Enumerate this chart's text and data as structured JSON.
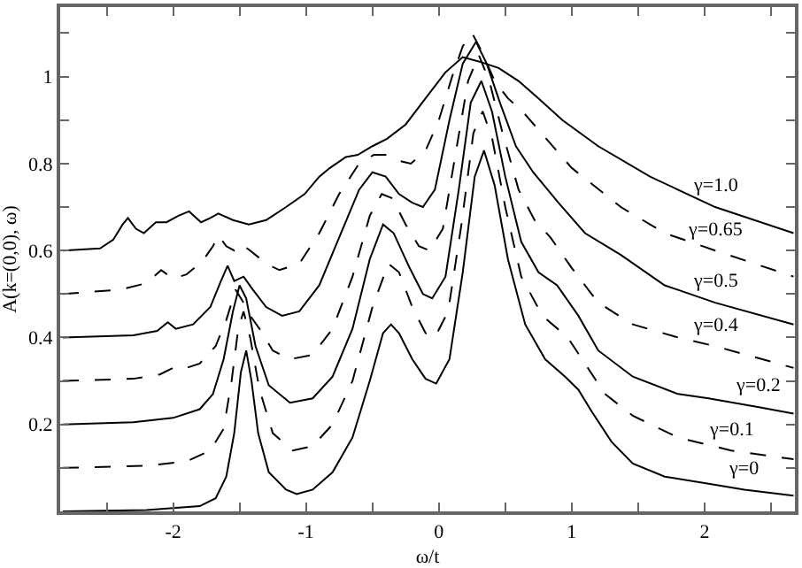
{
  "chart_data": {
    "type": "line",
    "xlabel": "ω/t",
    "ylabel": "A(k=(0,0), ω)",
    "xlim": [
      -2.85,
      2.68
    ],
    "xticks": [
      {
        "value": -2.5,
        "label": null
      },
      -2,
      {
        "value": -1.5,
        "label": null
      },
      -1,
      {
        "value": -0.5,
        "label": null
      },
      0,
      {
        "value": 0.5,
        "label": null
      },
      1,
      {
        "value": 1.5,
        "label": null
      },
      2,
      {
        "value": 2.5,
        "label": null
      }
    ],
    "ylim": [
      0,
      1.16
    ],
    "yticks": [
      {
        "value": 0.1,
        "label": null
      },
      0.2,
      {
        "value": 0.3,
        "label": null
      },
      0.4,
      {
        "value": 0.5,
        "label": null
      },
      0.6,
      {
        "value": 0.7,
        "label": null
      },
      0.8,
      {
        "value": 0.9,
        "label": null
      },
      1,
      {
        "value": 1.1,
        "label": null
      }
    ],
    "grid": false,
    "marker": "none",
    "series": [
      {
        "name": "γ=0",
        "color": "#000000",
        "line_style": "solid",
        "x": [
          -2.83,
          -2.2,
          -1.8,
          -1.68,
          -1.6,
          -1.54,
          -1.49,
          -1.45,
          -1.41,
          -1.36,
          -1.28,
          -1.15,
          -1.07,
          -0.95,
          -0.8,
          -0.65,
          -0.52,
          -0.42,
          -0.36,
          -0.3,
          -0.2,
          -0.1,
          -0.02,
          0.08,
          0.18,
          0.27,
          0.34,
          0.42,
          0.52,
          0.65,
          0.8,
          0.95,
          1.05,
          1.15,
          1.3,
          1.46,
          1.7,
          2.0,
          2.3,
          2.67
        ],
        "values": [
          0,
          0.003,
          0.012,
          0.03,
          0.08,
          0.18,
          0.32,
          0.37,
          0.3,
          0.18,
          0.09,
          0.05,
          0.04,
          0.05,
          0.09,
          0.17,
          0.3,
          0.41,
          0.43,
          0.41,
          0.35,
          0.305,
          0.294,
          0.35,
          0.55,
          0.77,
          0.83,
          0.75,
          0.58,
          0.43,
          0.35,
          0.31,
          0.28,
          0.23,
          0.16,
          0.11,
          0.08,
          0.065,
          0.05,
          0.036
        ]
      },
      {
        "name": "γ=0.1",
        "color": "#000000",
        "line_style": "dashed",
        "x": [
          -2.83,
          -2.2,
          -1.9,
          -1.72,
          -1.62,
          -1.56,
          -1.51,
          -1.47,
          -1.42,
          -1.35,
          -1.25,
          -1.1,
          -0.95,
          -0.8,
          -0.65,
          -0.5,
          -0.38,
          -0.3,
          -0.2,
          -0.1,
          -0.03,
          0.07,
          0.17,
          0.26,
          0.33,
          0.4,
          0.5,
          0.62,
          0.78,
          0.97,
          1.1,
          1.25,
          1.46,
          1.8,
          2.2,
          2.67
        ],
        "values": [
          0.1,
          0.105,
          0.115,
          0.14,
          0.19,
          0.3,
          0.42,
          0.46,
          0.4,
          0.28,
          0.18,
          0.14,
          0.15,
          0.2,
          0.3,
          0.47,
          0.57,
          0.55,
          0.47,
          0.41,
          0.4,
          0.46,
          0.66,
          0.87,
          0.92,
          0.86,
          0.7,
          0.54,
          0.45,
          0.4,
          0.34,
          0.27,
          0.22,
          0.17,
          0.14,
          0.12
        ]
      },
      {
        "name": "γ=0.2",
        "color": "#000000",
        "line_style": "solid",
        "x": [
          -2.83,
          -2.3,
          -2.0,
          -1.8,
          -1.7,
          -1.62,
          -1.55,
          -1.5,
          -1.45,
          -1.38,
          -1.28,
          -1.12,
          -0.95,
          -0.8,
          -0.65,
          -0.52,
          -0.42,
          -0.34,
          -0.22,
          -0.12,
          -0.05,
          0.05,
          0.15,
          0.24,
          0.32,
          0.4,
          0.5,
          0.62,
          0.75,
          0.89,
          1.05,
          1.2,
          1.46,
          1.8,
          2.03,
          2.4,
          2.67
        ],
        "values": [
          0.2,
          0.205,
          0.215,
          0.235,
          0.27,
          0.35,
          0.46,
          0.52,
          0.49,
          0.38,
          0.29,
          0.25,
          0.26,
          0.31,
          0.42,
          0.58,
          0.66,
          0.64,
          0.56,
          0.5,
          0.49,
          0.54,
          0.74,
          0.94,
          0.99,
          0.92,
          0.77,
          0.62,
          0.55,
          0.52,
          0.45,
          0.37,
          0.31,
          0.27,
          0.26,
          0.24,
          0.225
        ]
      },
      {
        "name": "γ=0.4",
        "color": "#000000",
        "line_style": "dashed",
        "x": [
          -2.83,
          -2.3,
          -2.1,
          -2.0,
          -1.95,
          -1.8,
          -1.68,
          -1.6,
          -1.53,
          -1.47,
          -1.42,
          -1.35,
          -1.25,
          -1.12,
          -0.95,
          -0.8,
          -0.65,
          -0.52,
          -0.43,
          -0.35,
          -0.25,
          -0.15,
          -0.07,
          0.03,
          0.13,
          0.22,
          0.3,
          0.38,
          0.48,
          0.6,
          0.72,
          0.84,
          1.0,
          1.2,
          1.46,
          1.8,
          2.08,
          2.67
        ],
        "values": [
          0.3,
          0.305,
          0.315,
          0.33,
          0.325,
          0.34,
          0.38,
          0.44,
          0.51,
          0.48,
          0.45,
          0.42,
          0.37,
          0.35,
          0.36,
          0.42,
          0.54,
          0.68,
          0.73,
          0.72,
          0.66,
          0.61,
          0.6,
          0.65,
          0.83,
          0.99,
          1.05,
          0.99,
          0.87,
          0.74,
          0.67,
          0.63,
          0.56,
          0.48,
          0.43,
          0.4,
          0.38,
          0.33
        ]
      },
      {
        "name": "γ=0.5",
        "color": "#000000",
        "line_style": "solid",
        "x": [
          -2.83,
          -2.3,
          -2.12,
          -2.04,
          -1.98,
          -1.85,
          -1.72,
          -1.64,
          -1.59,
          -1.54,
          -1.47,
          -1.4,
          -1.3,
          -1.18,
          -1.05,
          -0.9,
          -0.75,
          -0.6,
          -0.5,
          -0.4,
          -0.3,
          -0.2,
          -0.12,
          -0.03,
          0.08,
          0.18,
          0.28,
          0.36,
          0.46,
          0.58,
          0.71,
          0.9,
          1.1,
          1.37,
          1.7,
          2.08,
          2.67
        ],
        "values": [
          0.4,
          0.405,
          0.415,
          0.435,
          0.42,
          0.43,
          0.47,
          0.53,
          0.565,
          0.53,
          0.54,
          0.51,
          0.47,
          0.45,
          0.46,
          0.52,
          0.63,
          0.74,
          0.78,
          0.77,
          0.73,
          0.71,
          0.7,
          0.74,
          0.9,
          1.03,
          1.08,
          1.03,
          0.94,
          0.84,
          0.78,
          0.71,
          0.64,
          0.59,
          0.52,
          0.48,
          0.43
        ]
      },
      {
        "name": "γ=0.65",
        "color": "#000000",
        "line_style": "dashed",
        "x": [
          -2.83,
          -2.4,
          -2.2,
          -2.09,
          -2.0,
          -1.9,
          -1.78,
          -1.7,
          -1.66,
          -1.6,
          -1.54,
          -1.49,
          -1.42,
          -1.3,
          -1.2,
          -1.05,
          -0.9,
          -0.75,
          -0.6,
          -0.49,
          -0.38,
          -0.28,
          -0.21,
          -0.1,
          0.0,
          0.1,
          0.18,
          0.25,
          0.32,
          0.42,
          0.52,
          0.63,
          0.8,
          1.0,
          1.37,
          1.7,
          2.08,
          2.67
        ],
        "values": [
          0.5,
          0.51,
          0.525,
          0.555,
          0.535,
          0.545,
          0.575,
          0.61,
          0.635,
          0.61,
          0.6,
          0.615,
          0.6,
          0.57,
          0.555,
          0.57,
          0.64,
          0.73,
          0.8,
          0.82,
          0.82,
          0.805,
          0.8,
          0.83,
          0.9,
          1.0,
          1.07,
          1.1,
          1.06,
          0.99,
          0.95,
          0.92,
          0.86,
          0.79,
          0.7,
          0.64,
          0.6,
          0.54
        ]
      },
      {
        "name": "γ=1.0",
        "color": "#000000",
        "line_style": "solid",
        "x": [
          -2.83,
          -2.55,
          -2.45,
          -2.38,
          -2.34,
          -2.28,
          -2.22,
          -2.13,
          -2.05,
          -1.96,
          -1.88,
          -1.79,
          -1.72,
          -1.66,
          -1.55,
          -1.43,
          -1.3,
          -1.15,
          -1.01,
          -0.9,
          -0.82,
          -0.7,
          -0.61,
          -0.5,
          -0.39,
          -0.25,
          -0.1,
          0.05,
          0.18,
          0.3,
          0.45,
          0.6,
          0.75,
          0.93,
          1.2,
          1.59,
          2.08,
          2.67
        ],
        "values": [
          0.6,
          0.605,
          0.625,
          0.66,
          0.675,
          0.65,
          0.64,
          0.665,
          0.665,
          0.68,
          0.69,
          0.665,
          0.675,
          0.685,
          0.67,
          0.66,
          0.67,
          0.7,
          0.73,
          0.77,
          0.79,
          0.815,
          0.82,
          0.84,
          0.857,
          0.89,
          0.95,
          1.01,
          1.045,
          1.035,
          1.02,
          0.99,
          0.95,
          0.9,
          0.84,
          0.77,
          0.7,
          0.64
        ]
      }
    ]
  }
}
